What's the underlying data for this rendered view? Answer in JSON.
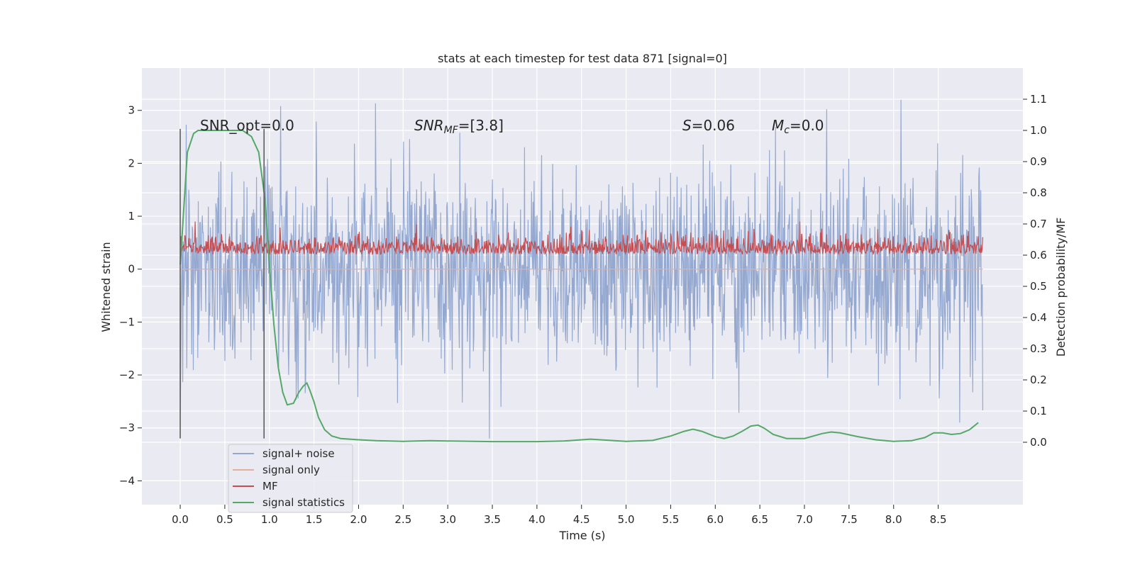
{
  "chart_data": {
    "type": "line",
    "title": "stats at each timestep for test data 871 [signal=0]",
    "xlabel": "Time (s)",
    "ylabel": "Whitened strain",
    "ylabel_right": "Detection probability/MF",
    "xlim": [
      -0.43,
      9.45
    ],
    "ylim": [
      -4.45,
      3.8
    ],
    "ylim_right": [
      -0.2,
      1.2
    ],
    "xticks": [
      "0.0",
      "0.5",
      "1.0",
      "1.5",
      "2.0",
      "2.5",
      "3.0",
      "3.5",
      "4.0",
      "4.5",
      "5.0",
      "5.5",
      "6.0",
      "6.5",
      "7.0",
      "7.5",
      "8.0",
      "8.5"
    ],
    "yticks": [
      "3",
      "2",
      "1",
      "0",
      "−1",
      "−2",
      "−3",
      "−4"
    ],
    "yticks_right": [
      "1.1",
      "1.0",
      "0.9",
      "0.8",
      "0.7",
      "0.6",
      "0.5",
      "0.4",
      "0.3",
      "0.2",
      "0.1",
      "0.0"
    ],
    "annotations": {
      "snr_opt": "SNR_opt=0.0",
      "snr_mf_sym": "SNR",
      "snr_mf_sub": "MF",
      "snr_mf_val": "=[3.8]",
      "s_sym": "S",
      "s_val": "=0.06",
      "mc_sym": "M",
      "mc_sub": "c",
      "mc_val": "=0.0"
    },
    "vlines": [
      0.0,
      0.94
    ],
    "vline_range": [
      -3.2,
      2.65
    ],
    "legend_position": "lower-left",
    "series": [
      {
        "name": "signal+ noise",
        "color": "#95a9d0",
        "description": "whitened strain noise, roughly Gaussian, spans about -3.2 to 3.5 over 0.0–9.0 s"
      },
      {
        "name": "signal only",
        "color": "#e5ae98",
        "values": "zero throughout"
      },
      {
        "name": "MF",
        "color": "#c44e52",
        "description": "matched filter output, between about 0.0 and 0.9"
      },
      {
        "name": "signal statistics",
        "color": "#55a868",
        "axis": "right",
        "x": [
          0.0,
          0.08,
          0.15,
          0.2,
          0.3,
          0.4,
          0.5,
          0.6,
          0.7,
          0.8,
          0.88,
          0.95,
          1.0,
          1.05,
          1.1,
          1.15,
          1.2,
          1.27,
          1.33,
          1.38,
          1.42,
          1.45,
          1.5,
          1.55,
          1.62,
          1.7,
          1.8,
          1.9,
          2.0,
          2.2,
          2.5,
          2.8,
          3.0,
          3.5,
          4.0,
          4.3,
          4.6,
          5.0,
          5.3,
          5.5,
          5.65,
          5.75,
          5.85,
          6.0,
          6.1,
          6.2,
          6.3,
          6.4,
          6.48,
          6.55,
          6.65,
          6.8,
          7.0,
          7.2,
          7.3,
          7.4,
          7.6,
          7.8,
          8.0,
          8.2,
          8.35,
          8.45,
          8.55,
          8.65,
          8.75,
          8.85,
          8.95
        ],
        "values": [
          0.57,
          0.93,
          0.99,
          1.0,
          1.0,
          1.0,
          1.0,
          1.0,
          1.0,
          0.98,
          0.93,
          0.78,
          0.57,
          0.38,
          0.24,
          0.16,
          0.12,
          0.125,
          0.16,
          0.18,
          0.19,
          0.17,
          0.13,
          0.08,
          0.04,
          0.02,
          0.012,
          0.01,
          0.008,
          0.005,
          0.003,
          0.005,
          0.004,
          0.002,
          0.002,
          0.004,
          0.01,
          0.003,
          0.006,
          0.02,
          0.035,
          0.042,
          0.035,
          0.018,
          0.012,
          0.02,
          0.035,
          0.052,
          0.055,
          0.045,
          0.025,
          0.012,
          0.012,
          0.028,
          0.033,
          0.03,
          0.018,
          0.008,
          0.003,
          0.005,
          0.015,
          0.03,
          0.03,
          0.025,
          0.028,
          0.04,
          0.063
        ]
      }
    ]
  }
}
